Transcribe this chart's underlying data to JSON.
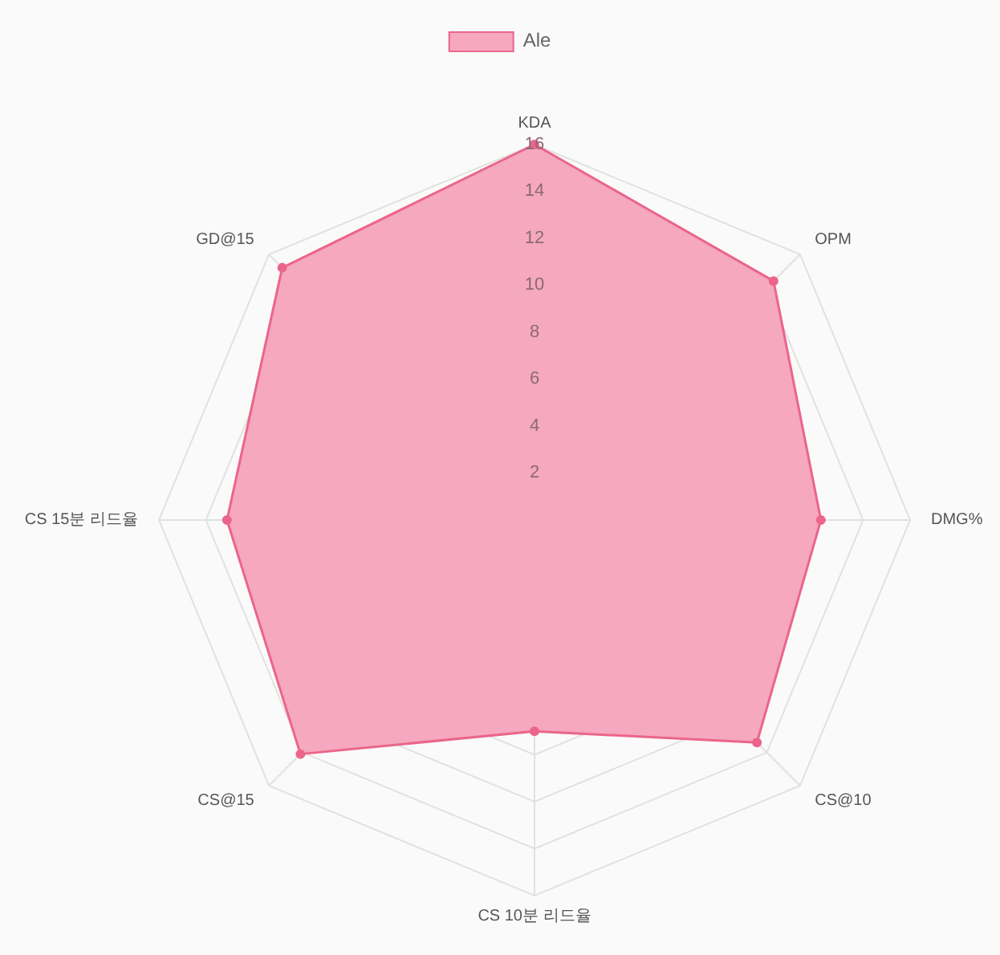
{
  "chart_data": {
    "type": "radar",
    "categories": [
      "KDA",
      "OPM",
      "DMG%",
      "CS@10",
      "CS 10분 리드율",
      "CS@15",
      "CS 15분 리드율",
      "GD@15"
    ],
    "series": [
      {
        "name": "Ale",
        "color": "#f5a8bf",
        "values": [
          16,
          14.4,
          12.2,
          13.4,
          9.0,
          14.1,
          13.1,
          15.2
        ]
      }
    ],
    "ylim": [
      0,
      16
    ],
    "yticks": [
      2,
      4,
      6,
      8,
      10,
      12,
      14,
      16
    ],
    "grid": true,
    "legend": "top",
    "marker": "circle"
  }
}
